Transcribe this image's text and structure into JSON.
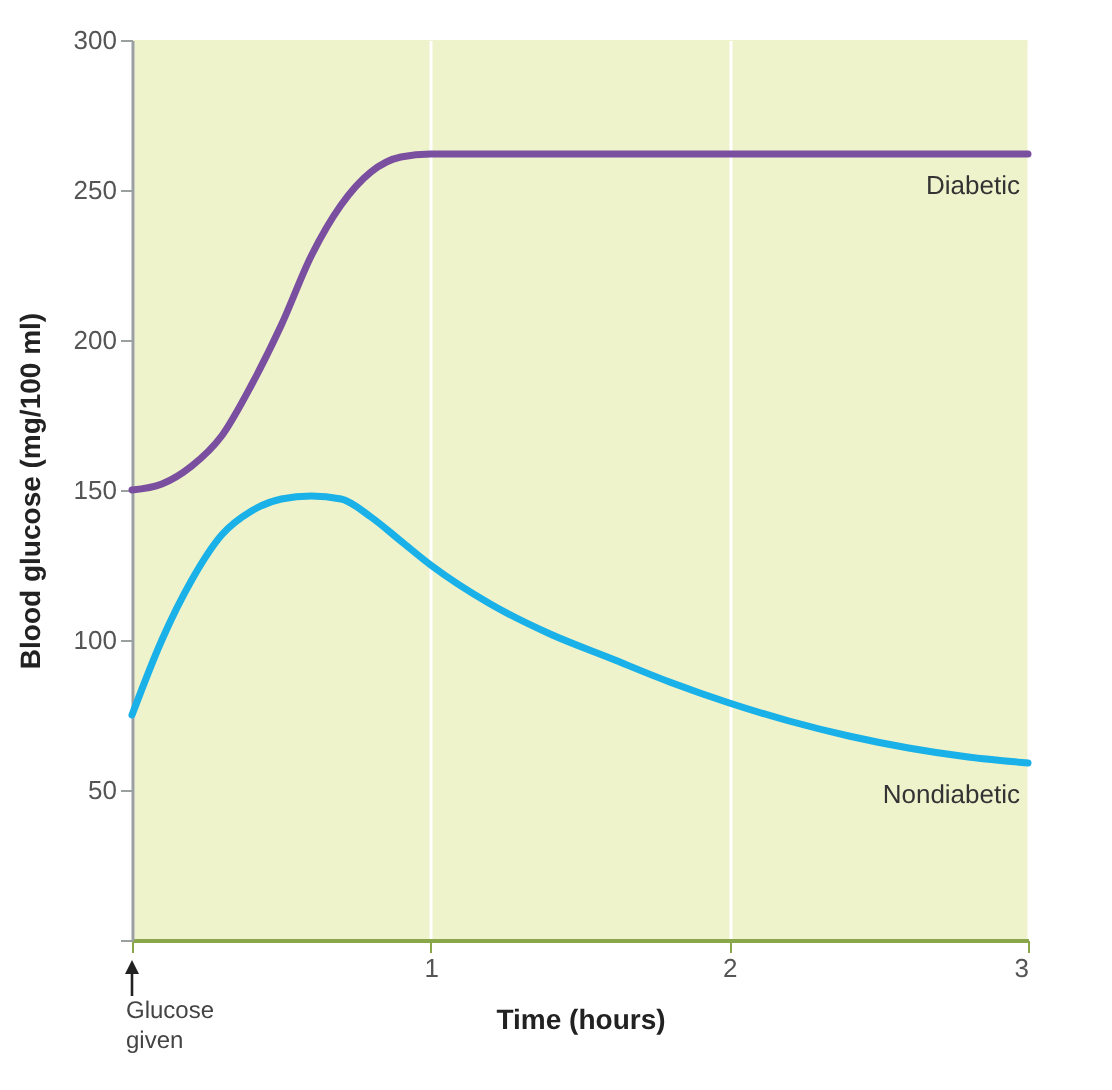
{
  "chart_data": {
    "type": "line",
    "xlabel": "Time (hours)",
    "ylabel": "Blood glucose (mg/100 ml)",
    "xlim": [
      0,
      3
    ],
    "xticks": [
      {
        "value": 0,
        "label": null
      },
      1,
      2,
      3
    ],
    "ylim": [
      0,
      300
    ],
    "yticks": [
      {
        "value": 0,
        "label": null
      },
      50,
      100,
      150,
      200,
      250,
      300
    ],
    "grid": "x",
    "marker": "none",
    "line_style": "solid",
    "annotations": [
      "Glucose given"
    ],
    "series": [
      {
        "name": "Diabetic",
        "color": "#7b4fa0",
        "x": [
          0,
          0.1,
          0.2,
          0.3,
          0.4,
          0.5,
          0.6,
          0.7,
          0.8,
          0.9,
          1.0,
          1.1,
          1.2,
          1.5,
          2,
          2.5,
          3
        ],
        "values": [
          150,
          152,
          158,
          168,
          185,
          205,
          228,
          245,
          256,
          261,
          262,
          262,
          262,
          262,
          262,
          262,
          262
        ]
      },
      {
        "name": "Nondiabetic",
        "color": "#1ab0e8",
        "x": [
          0,
          0.1,
          0.2,
          0.3,
          0.4,
          0.5,
          0.6,
          0.7,
          0.8,
          0.9,
          1.0,
          1.2,
          1.4,
          1.6,
          1.8,
          2.0,
          2.2,
          2.4,
          2.6,
          2.8,
          3.0
        ],
        "values": [
          75,
          100,
          120,
          135,
          143,
          147,
          148,
          147,
          141,
          133,
          125,
          112,
          102,
          94,
          86,
          79,
          73,
          68,
          64,
          61,
          59
        ]
      }
    ]
  }
}
